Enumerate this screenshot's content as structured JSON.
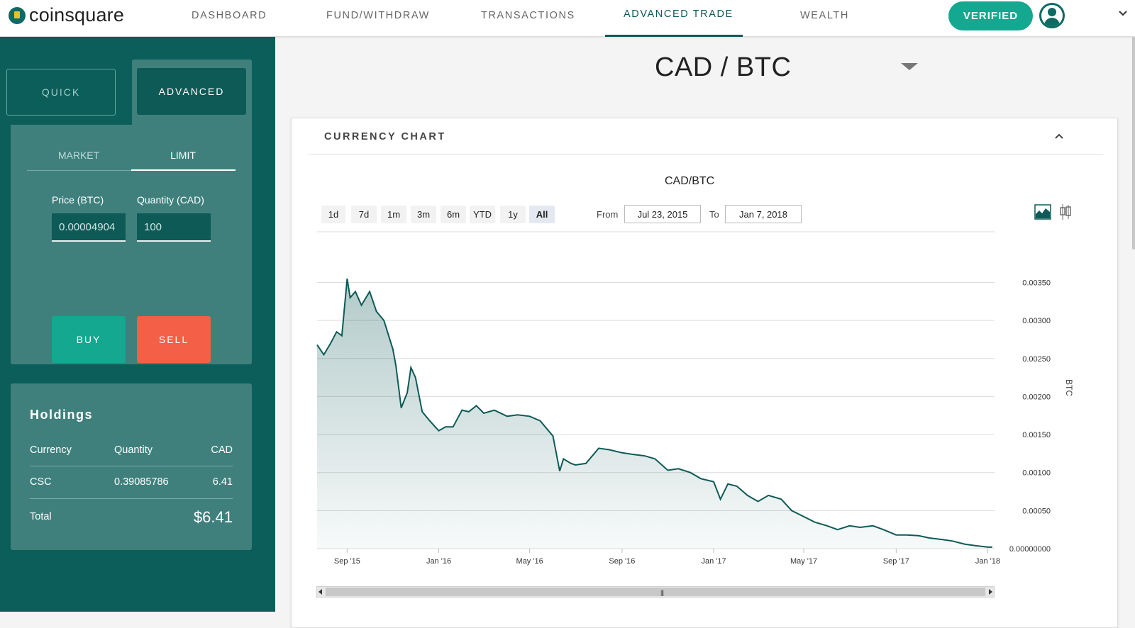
{
  "nav": {
    "logo_text": "coinsquare",
    "links": [
      "DASHBOARD",
      "FUND/WITHDRAW",
      "TRANSACTIONS",
      "ADVANCED TRADE",
      "WEALTH"
    ],
    "active": "ADVANCED TRADE",
    "verified_label": "VERIFIED",
    "icons": [
      "user-avatar-icon",
      "chevron-down-icon"
    ],
    "accent": "#0d5b56",
    "verified_color": "#13a88f"
  },
  "sidebar": {
    "mode_quick": "QUICK",
    "mode_advanced": "ADVANCED",
    "order_types": [
      "MARKET",
      "LIMIT"
    ],
    "active_order_type": "LIMIT",
    "price_label": "Price (BTC)",
    "price_value": "0.00004904",
    "quantity_label": "Quantity (CAD)",
    "quantity_value": "100",
    "buy_label": "BUY",
    "sell_label": "SELL",
    "buy_color": "#13a88f",
    "sell_color": "#f45f48",
    "holdings": {
      "title": "Holdings",
      "headers": [
        "Currency",
        "Quantity",
        "CAD"
      ],
      "rows": [
        {
          "currency": "CSC",
          "quantity": "0.39085786",
          "cad": "6.41"
        }
      ],
      "total_label": "Total",
      "total_value": "$6.41"
    }
  },
  "main": {
    "pair": "CAD / BTC",
    "card_title": "CURRENCY CHART",
    "ranges": [
      "1d",
      "7d",
      "1m",
      "3m",
      "6m",
      "YTD",
      "1y",
      "All"
    ],
    "active_range": "All",
    "from_label": "From",
    "from_value": "Jul 23, 2015",
    "to_label": "To",
    "to_value": "Jan 7, 2018",
    "chart_icons": [
      "area-chart-icon",
      "candlestick-icon",
      "chevron-up-icon"
    ]
  },
  "chart_data": {
    "type": "area",
    "title": "CAD/BTC",
    "ylabel": "BTC",
    "xlabel": "",
    "x_ticks": [
      "Sep '15",
      "Jan '16",
      "May '16",
      "Sep '16",
      "Jan '17",
      "May '17",
      "Sep '17",
      "Jan '18"
    ],
    "y_ticks": [
      "0.00000000",
      "0.00050",
      "0.00100",
      "0.00150",
      "0.00200",
      "0.00250",
      "0.00300",
      "0.00350"
    ],
    "ylim": [
      0,
      0.0037
    ],
    "grid": true,
    "line_color": "#0d5a56",
    "x": [
      "2015-07-23",
      "2015-08-01",
      "2015-08-10",
      "2015-08-18",
      "2015-08-25",
      "2015-09-01",
      "2015-09-05",
      "2015-09-12",
      "2015-09-20",
      "2015-10-01",
      "2015-10-10",
      "2015-10-20",
      "2015-11-01",
      "2015-11-05",
      "2015-11-12",
      "2015-11-20",
      "2015-11-25",
      "2015-12-01",
      "2015-12-10",
      "2015-12-20",
      "2016-01-01",
      "2016-01-10",
      "2016-01-20",
      "2016-02-01",
      "2016-02-10",
      "2016-02-20",
      "2016-03-01",
      "2016-03-15",
      "2016-04-01",
      "2016-04-15",
      "2016-05-01",
      "2016-05-15",
      "2016-06-01",
      "2016-06-10",
      "2016-06-15",
      "2016-06-25",
      "2016-07-01",
      "2016-07-15",
      "2016-08-01",
      "2016-08-15",
      "2016-09-01",
      "2016-09-15",
      "2016-10-01",
      "2016-10-15",
      "2016-11-01",
      "2016-11-15",
      "2016-12-01",
      "2016-12-15",
      "2017-01-01",
      "2017-01-10",
      "2017-01-20",
      "2017-02-01",
      "2017-02-15",
      "2017-03-01",
      "2017-03-15",
      "2017-04-01",
      "2017-04-15",
      "2017-05-01",
      "2017-05-15",
      "2017-06-01",
      "2017-06-15",
      "2017-07-01",
      "2017-07-15",
      "2017-08-01",
      "2017-08-15",
      "2017-09-01",
      "2017-09-15",
      "2017-10-01",
      "2017-10-15",
      "2017-11-01",
      "2017-11-15",
      "2017-12-01",
      "2017-12-15",
      "2018-01-01",
      "2018-01-07"
    ],
    "values": [
      0.00268,
      0.00255,
      0.0027,
      0.00285,
      0.0028,
      0.00355,
      0.0033,
      0.00338,
      0.0032,
      0.00338,
      0.00312,
      0.003,
      0.00262,
      0.0024,
      0.00185,
      0.00205,
      0.00238,
      0.00225,
      0.0018,
      0.00168,
      0.00155,
      0.0016,
      0.0016,
      0.00182,
      0.0018,
      0.00188,
      0.00178,
      0.00182,
      0.00174,
      0.00176,
      0.00174,
      0.00168,
      0.00148,
      0.00102,
      0.00118,
      0.00112,
      0.0011,
      0.00112,
      0.00132,
      0.0013,
      0.00126,
      0.00124,
      0.00122,
      0.00118,
      0.00103,
      0.00105,
      0.001,
      0.00092,
      0.00088,
      0.00065,
      0.00085,
      0.00082,
      0.0007,
      0.00062,
      0.0007,
      0.00065,
      0.0005,
      0.00042,
      0.00035,
      0.0003,
      0.00025,
      0.0003,
      0.00028,
      0.0003,
      0.00025,
      0.00018,
      0.00018,
      0.00017,
      0.00014,
      0.00012,
      0.0001,
      6e-05,
      4e-05,
      2e-05,
      2e-05
    ]
  }
}
